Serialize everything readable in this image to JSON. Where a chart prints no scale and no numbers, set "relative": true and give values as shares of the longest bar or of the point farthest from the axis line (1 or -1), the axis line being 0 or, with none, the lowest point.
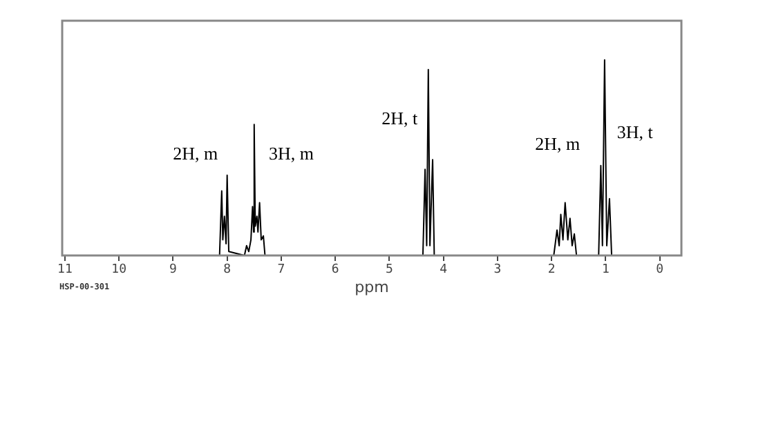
{
  "chart_data": {
    "type": "line",
    "relative": true,
    "color": "#000000",
    "xlabel": "ppm",
    "xlim": [
      11.05,
      -0.4
    ],
    "xticks": [
      11,
      10,
      9,
      8,
      7,
      6,
      5,
      4,
      3,
      2,
      1,
      0
    ],
    "x": [
      11.05,
      8.14,
      8.1,
      8.08,
      8.05,
      8.02,
      8.0,
      7.97,
      7.68,
      7.64,
      7.6,
      7.56,
      7.53,
      7.51,
      7.5,
      7.48,
      7.45,
      7.43,
      7.4,
      7.37,
      7.33,
      7.3,
      4.38,
      4.34,
      4.31,
      4.28,
      4.25,
      4.2,
      4.17,
      1.96,
      1.9,
      1.86,
      1.83,
      1.79,
      1.75,
      1.7,
      1.66,
      1.62,
      1.58,
      1.54,
      1.13,
      1.09,
      1.06,
      1.02,
      0.98,
      0.93,
      0.89,
      -0.4
    ],
    "values": [
      0,
      0,
      0.33,
      0.08,
      0.2,
      0.06,
      0.41,
      0.02,
      0,
      0.05,
      0.02,
      0.08,
      0.25,
      0.12,
      0.67,
      0.15,
      0.2,
      0.12,
      0.27,
      0.08,
      0.1,
      0,
      0,
      0.44,
      0.05,
      0.95,
      0.05,
      0.49,
      0,
      0,
      0.13,
      0.05,
      0.21,
      0.08,
      0.27,
      0.08,
      0.19,
      0.05,
      0.11,
      0,
      0,
      0.46,
      0.05,
      1,
      0.05,
      0.29,
      0,
      0
    ],
    "annotations": [
      "2H, m",
      "3H, m",
      "2H, t",
      "2H, m",
      "3H, t",
      "HSP-00-301"
    ]
  }
}
